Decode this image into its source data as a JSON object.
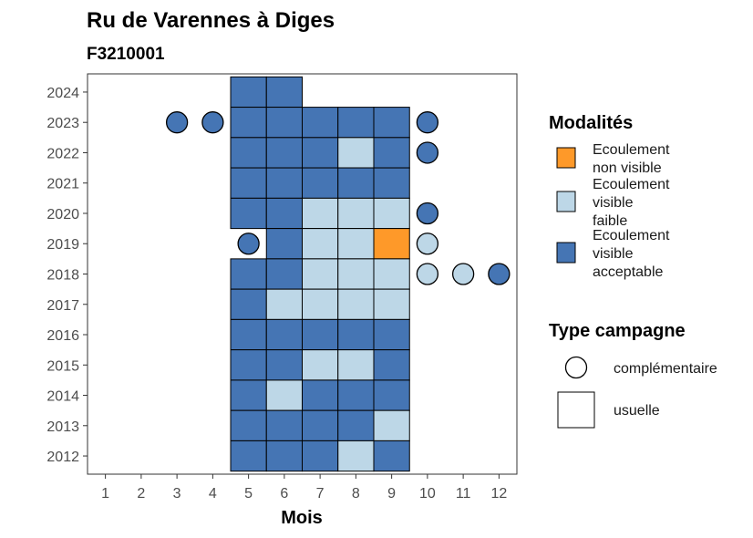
{
  "chart_data": {
    "type": "heatmap",
    "title": "Ru de Varennes à Diges",
    "subtitle": "F3210001",
    "xlabel": "Mois",
    "ylabel": "",
    "x_ticks": [
      1,
      2,
      3,
      4,
      5,
      6,
      7,
      8,
      9,
      10,
      11,
      12
    ],
    "y_ticks": [
      2012,
      2013,
      2014,
      2015,
      2016,
      2017,
      2018,
      2019,
      2020,
      2021,
      2022,
      2023,
      2024
    ],
    "xlim": [
      0.5,
      12.5
    ],
    "ylim": [
      2011.4,
      2024.6
    ],
    "colors": {
      "non_visible": "#fe9929",
      "faible": "#bdd7e7",
      "acceptable": "#4575b4"
    },
    "legend_modalites": {
      "title": "Modalités",
      "entries": [
        {
          "key": "non_visible",
          "lines": [
            "Ecoulement",
            "non visible"
          ]
        },
        {
          "key": "faible",
          "lines": [
            "Ecoulement",
            "visible",
            "faible"
          ]
        },
        {
          "key": "acceptable",
          "lines": [
            "Ecoulement",
            "visible",
            "acceptable"
          ]
        }
      ]
    },
    "legend_type": {
      "title": "Type campagne",
      "entries": [
        {
          "shape": "circle",
          "label": "complémentaire"
        },
        {
          "shape": "square",
          "label": "usuelle"
        }
      ]
    },
    "usuelle": [
      {
        "year": 2024,
        "values": {
          "5": "acceptable",
          "6": "acceptable"
        }
      },
      {
        "year": 2023,
        "values": {
          "5": "acceptable",
          "6": "acceptable",
          "7": "acceptable",
          "8": "acceptable",
          "9": "acceptable"
        }
      },
      {
        "year": 2022,
        "values": {
          "5": "acceptable",
          "6": "acceptable",
          "7": "acceptable",
          "8": "faible",
          "9": "acceptable"
        }
      },
      {
        "year": 2021,
        "values": {
          "5": "acceptable",
          "6": "acceptable",
          "7": "acceptable",
          "8": "acceptable",
          "9": "acceptable"
        }
      },
      {
        "year": 2020,
        "values": {
          "5": "acceptable",
          "6": "acceptable",
          "7": "faible",
          "8": "faible",
          "9": "faible"
        }
      },
      {
        "year": 2019,
        "values": {
          "6": "acceptable",
          "7": "faible",
          "8": "faible",
          "9": "non_visible"
        }
      },
      {
        "year": 2018,
        "values": {
          "5": "acceptable",
          "6": "acceptable",
          "7": "faible",
          "8": "faible",
          "9": "faible"
        }
      },
      {
        "year": 2017,
        "values": {
          "5": "acceptable",
          "6": "faible",
          "7": "faible",
          "8": "faible",
          "9": "faible"
        }
      },
      {
        "year": 2016,
        "values": {
          "5": "acceptable",
          "6": "acceptable",
          "7": "acceptable",
          "8": "acceptable",
          "9": "acceptable"
        }
      },
      {
        "year": 2015,
        "values": {
          "5": "acceptable",
          "6": "acceptable",
          "7": "faible",
          "8": "faible",
          "9": "acceptable"
        }
      },
      {
        "year": 2014,
        "values": {
          "5": "acceptable",
          "6": "faible",
          "7": "acceptable",
          "8": "acceptable",
          "9": "acceptable"
        }
      },
      {
        "year": 2013,
        "values": {
          "5": "acceptable",
          "6": "acceptable",
          "7": "acceptable",
          "8": "acceptable",
          "9": "faible"
        }
      },
      {
        "year": 2012,
        "values": {
          "5": "acceptable",
          "6": "acceptable",
          "7": "acceptable",
          "8": "faible",
          "9": "acceptable"
        }
      }
    ],
    "complementaire": [
      {
        "year": 2023,
        "month": 3,
        "value": "acceptable"
      },
      {
        "year": 2023,
        "month": 4,
        "value": "acceptable"
      },
      {
        "year": 2023,
        "month": 10,
        "value": "acceptable"
      },
      {
        "year": 2022,
        "month": 10,
        "value": "acceptable"
      },
      {
        "year": 2020,
        "month": 10,
        "value": "acceptable"
      },
      {
        "year": 2019,
        "month": 5,
        "value": "acceptable"
      },
      {
        "year": 2019,
        "month": 10,
        "value": "faible"
      },
      {
        "year": 2018,
        "month": 10,
        "value": "faible"
      },
      {
        "year": 2018,
        "month": 11,
        "value": "faible"
      },
      {
        "year": 2018,
        "month": 12,
        "value": "acceptable"
      }
    ]
  }
}
